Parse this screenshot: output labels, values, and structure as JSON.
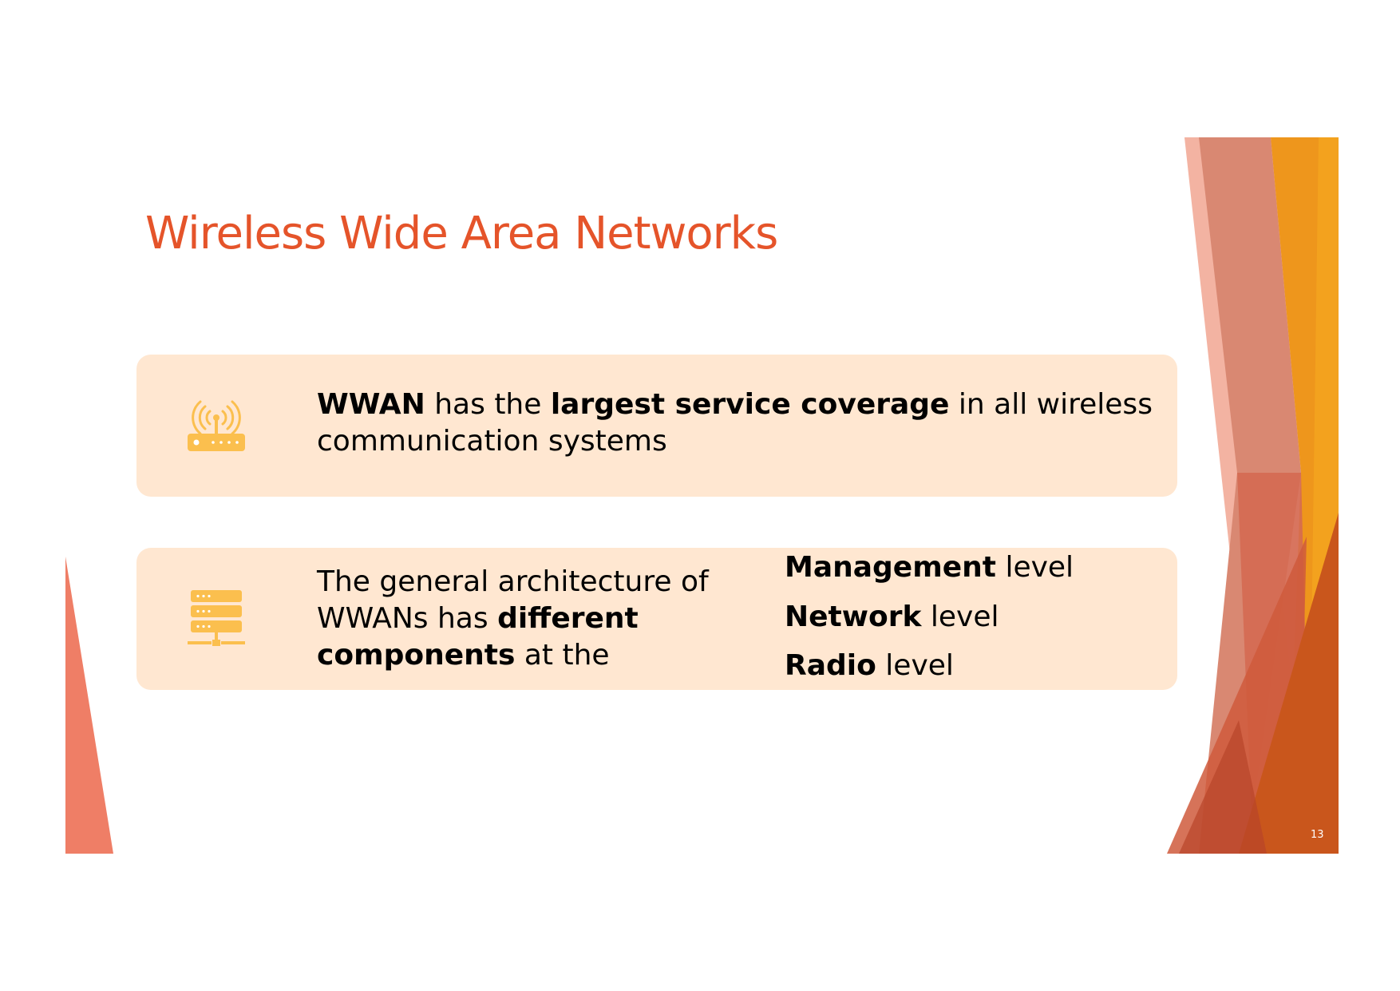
{
  "slide": {
    "title": "Wireless Wide Area Networks",
    "page_number": "13",
    "box1": {
      "icon": "router-antenna-icon",
      "parts": [
        "WWAN",
        " has the ",
        "largest service coverage",
        " in all wireless communication systems"
      ]
    },
    "box2": {
      "icon": "server-network-icon",
      "parts": [
        "The general architecture of WWANs has ",
        "different components",
        " at the"
      ],
      "levels": [
        {
          "bold": "Management",
          "rest": " level"
        },
        {
          "bold": "Network",
          "rest": " level"
        },
        {
          "bold": "Radio",
          "rest": " level"
        }
      ]
    }
  },
  "colors": {
    "title": "#E5542A",
    "box_fill": "#FFE7D1",
    "icon": "#FBBF4E"
  }
}
